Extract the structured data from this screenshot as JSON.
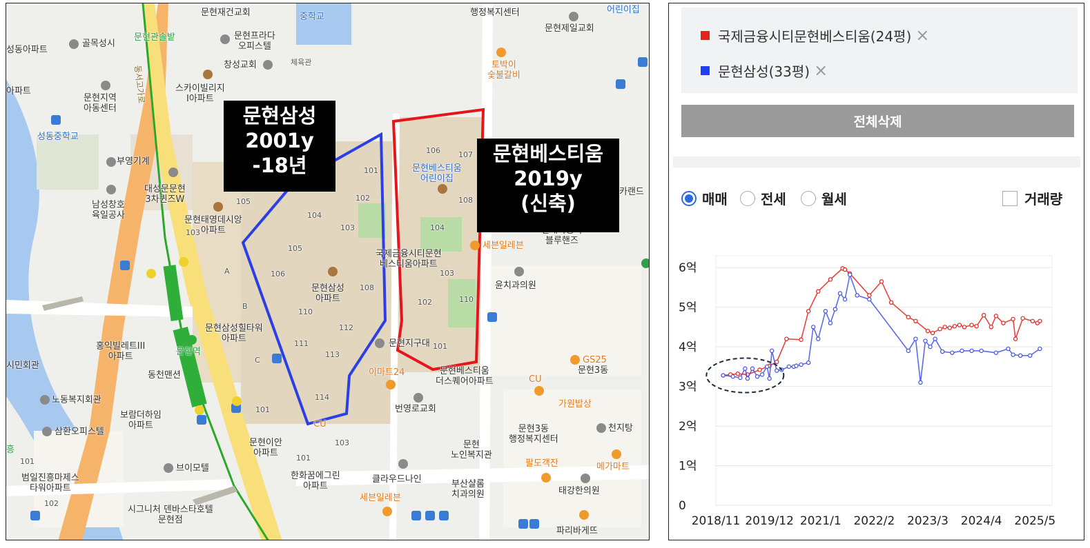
{
  "map": {
    "callout_samsung": {
      "line1": "문현삼성",
      "line2": "2001y",
      "line3": "-18년"
    },
    "callout_bestium": {
      "line1": "문현베스티움",
      "line2": "2019y",
      "line3": "(신축)"
    },
    "labels": {
      "munhyeon_jaegeon": "문현재건교회",
      "jung_school": "중학교",
      "haengjeong_top": "행정복지센터",
      "kids_top": "어린이집",
      "munhyeon_jeil": "문현제일교회",
      "gwanseol": "문현관솔밭",
      "golmok": "골목성시",
      "seongdong_apt": "성동아파트",
      "prada1": "문현프라다",
      "prada2": "오피스텔",
      "cheyuk": "체육관",
      "changseong": "창성교회",
      "topaki1": "토박이",
      "topaki2": "숯불갈비",
      "apt_left": "아파트",
      "skyvill1": "스카이빌리지",
      "skyvill2": "I아파트",
      "center1": "문현지역",
      "center2": "아동센터",
      "seongdong_mid": "성동중학교",
      "buyeong": "부영기계",
      "daeseong1": "대성문문현",
      "daeseong2": "3차퀸즈W",
      "namseong1": "남성창호",
      "namseong2": "육일공사",
      "taeyeong1": "문현태영데시앙",
      "taeyeong2": "아파트",
      "samsung_apt1": "문현삼성",
      "samsung_apt2": "아파트",
      "gukje1": "국제금융시티문현",
      "gukje2": "베스티움아파트",
      "bestium_kids1": "문현베스티움",
      "bestium_kids2": "어린이집",
      "seven1": "세븐일레븐",
      "yunchi": "윤치과의원",
      "hyundai1": "현대자동차",
      "hyundai2": "블루핸즈",
      "karend": "카랜드",
      "hill1": "문현삼성힐타워",
      "hill2": "아파트",
      "hongik1": "홍익빌레트III",
      "hongik2": "아파트",
      "dongcheon": "동천맨션",
      "munhyeon_station": "문현역",
      "jigudae": "문현지구대",
      "emart": "이마트24",
      "bestium_sq1": "문현베스티움",
      "bestium_sq2": "더스퀘어아파트",
      "gs25": "GS25",
      "munhyeon3dong": "문현3동",
      "cu1": "CU",
      "gawon": "가원밥상",
      "simin": "시민회관",
      "nodong": "노동복지회관",
      "boram1": "보람더하임",
      "boram2": "아파트",
      "beonyeong": "번영로교회",
      "dong3_1": "문현3동",
      "dong3_2": "행정복지센터",
      "cheonji": "천지탕",
      "samhwan": "삼환오피스텔",
      "cu2": "CU",
      "ian1": "문현이안",
      "ian2": "아파트",
      "noin1": "문현",
      "noin2": "노인복지관",
      "paldo": "팔도객잔",
      "mega": "메가마트",
      "bimotel": "브이모텔",
      "beomil1": "범일진흥마제스",
      "beomil2": "타워아파트",
      "hanhwa1": "한화꿈에그린",
      "hanhwa2": "아파트",
      "cloud": "클라우드나인",
      "busan1": "부산샬롬",
      "busan2": "치과의원",
      "taegang": "태강한의원",
      "seven2": "세븐일레븐",
      "signiture1": "시그니처 덴바스타호텔",
      "signiture2": "문현점",
      "paris": "파리바게뜨",
      "heung": "흥",
      "road": "동서고가로"
    },
    "bldg_numbers": [
      "101",
      "102",
      "103",
      "104",
      "105",
      "106",
      "110",
      "108",
      "111",
      "112",
      "113",
      "114",
      "106",
      "107",
      "108",
      "104",
      "103",
      "110",
      "101",
      "105",
      "103",
      "102",
      "101",
      "103",
      "101",
      "102",
      "A",
      "B",
      "C",
      "101"
    ]
  },
  "panel": {
    "legend": [
      {
        "label": "국제금융시티문현베스티움(24평)",
        "color": "#e8211d"
      },
      {
        "label": "문현삼성(33평)",
        "color": "#1f3ff0"
      }
    ],
    "close_icon": "×",
    "delete_all": "전체삭제",
    "options": {
      "sale": "매매",
      "jeonse": "전세",
      "monthly": "월세",
      "volume": "거래량"
    }
  },
  "chart_data": {
    "type": "line",
    "y_ticks": [
      "0",
      "1억",
      "2억",
      "3억",
      "4억",
      "5억",
      "6억"
    ],
    "x_ticks": [
      "2018/11",
      "2019/12",
      "2021/1",
      "2022/2",
      "2023/3",
      "2024/4",
      "2025/5"
    ],
    "ylim": [
      0,
      6.3
    ],
    "xlim": [
      2018.85,
      2025.75
    ],
    "grid": true,
    "series": [
      {
        "name": "국제금융시티문현베스티움(24평)",
        "color": "#e8211d",
        "x": [
          2019.0,
          2019.15,
          2019.3,
          2019.5,
          2019.75,
          2019.95,
          2020.1,
          2020.3,
          2020.6,
          2020.75,
          2020.95,
          2021.2,
          2021.45,
          2021.5,
          2021.6,
          2022.0,
          2022.25,
          2022.45,
          2022.8,
          2022.95,
          2023.2,
          2023.3,
          2023.45,
          2023.55,
          2023.65,
          2023.75,
          2023.85,
          2023.95,
          2024.1,
          2024.2,
          2024.35,
          2024.5,
          2024.6,
          2024.75,
          2024.95,
          2025.0,
          2025.15,
          2025.35,
          2025.45,
          2025.5
        ],
        "y": [
          3.28,
          3.3,
          3.32,
          3.3,
          3.42,
          3.52,
          3.62,
          4.2,
          4.18,
          4.9,
          5.4,
          5.7,
          5.98,
          5.95,
          5.85,
          5.3,
          5.65,
          5.12,
          4.75,
          4.65,
          4.4,
          4.35,
          4.45,
          4.5,
          4.48,
          4.52,
          4.55,
          4.5,
          4.55,
          4.52,
          4.8,
          4.5,
          4.78,
          4.6,
          4.7,
          4.2,
          4.72,
          4.65,
          4.6,
          4.65
        ]
      },
      {
        "name": "문현삼성(33평)",
        "color": "#3f51e8",
        "x": [
          2019.0,
          2019.2,
          2019.35,
          2019.45,
          2019.5,
          2019.6,
          2019.7,
          2019.8,
          2019.9,
          2019.95,
          2020.0,
          2020.1,
          2020.2,
          2020.35,
          2020.45,
          2020.5,
          2020.6,
          2020.75,
          2020.85,
          2020.95,
          2021.1,
          2021.2,
          2021.3,
          2021.4,
          2021.5,
          2021.6,
          2021.75,
          2022.0,
          2022.8,
          2022.95,
          2023.05,
          2023.15,
          2023.25,
          2023.35,
          2023.5,
          2023.7,
          2023.9,
          2024.1,
          2024.3,
          2024.6,
          2024.85,
          2024.95,
          2025.1,
          2025.3,
          2025.5
        ],
        "y": [
          3.28,
          3.25,
          3.22,
          3.45,
          3.2,
          3.45,
          3.25,
          3.3,
          3.5,
          3.2,
          3.9,
          3.4,
          3.42,
          3.5,
          3.5,
          3.52,
          3.55,
          3.6,
          4.5,
          4.2,
          4.9,
          4.6,
          4.95,
          5.35,
          5.2,
          5.82,
          5.3,
          5.2,
          3.9,
          4.2,
          3.1,
          4.15,
          4.0,
          4.2,
          3.88,
          3.85,
          3.9,
          3.9,
          3.9,
          3.85,
          3.95,
          3.8,
          3.78,
          3.78,
          3.95
        ]
      }
    ],
    "annotation": "dashed-ellipse-around-2019"
  }
}
